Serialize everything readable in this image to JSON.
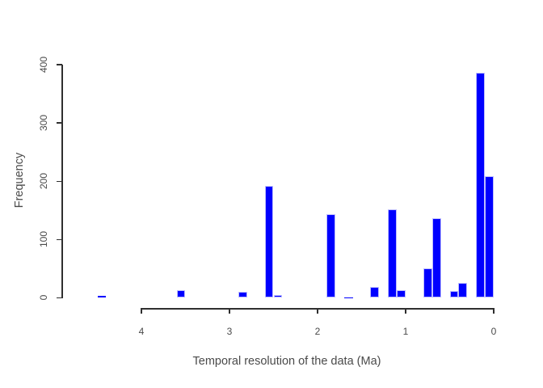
{
  "colors": {
    "background": "#ffffff",
    "bar_fill": "#0000ff",
    "bar_border": "#bdbdfd",
    "axis_line": "#2f2f2f",
    "text": "#4a4a4a"
  },
  "chart_data": {
    "type": "bar",
    "chart_kind": "histogram",
    "title": "",
    "xlabel": "Temporal resolution of the data (Ma)",
    "ylabel": "Frequency",
    "x_axis_reversed": true,
    "x_tick_values": [
      4,
      3,
      2,
      1,
      0
    ],
    "x_tick_labels": [
      "4",
      "3",
      "2",
      "1",
      "0"
    ],
    "y_tick_values": [
      0,
      100,
      200,
      300,
      400
    ],
    "y_tick_labels": [
      "0",
      "100",
      "200",
      "300",
      "400"
    ],
    "ylim": [
      0,
      400
    ],
    "bin_width": 0.1,
    "grid": false,
    "legend": null,
    "bins": [
      {
        "x_from": 4.4,
        "x_to": 4.5,
        "count": 3
      },
      {
        "x_from": 3.5,
        "x_to": 3.6,
        "count": 13
      },
      {
        "x_from": 2.8,
        "x_to": 2.9,
        "count": 10
      },
      {
        "x_from": 2.5,
        "x_to": 2.6,
        "count": 192
      },
      {
        "x_from": 2.4,
        "x_to": 2.5,
        "count": 5
      },
      {
        "x_from": 1.8,
        "x_to": 1.9,
        "count": 144
      },
      {
        "x_from": 1.6,
        "x_to": 1.7,
        "count": 1
      },
      {
        "x_from": 1.3,
        "x_to": 1.4,
        "count": 18
      },
      {
        "x_from": 1.1,
        "x_to": 1.2,
        "count": 152
      },
      {
        "x_from": 1.0,
        "x_to": 1.1,
        "count": 13
      },
      {
        "x_from": 0.7,
        "x_to": 0.8,
        "count": 50
      },
      {
        "x_from": 0.6,
        "x_to": 0.7,
        "count": 137
      },
      {
        "x_from": 0.4,
        "x_to": 0.5,
        "count": 11
      },
      {
        "x_from": 0.3,
        "x_to": 0.4,
        "count": 26
      },
      {
        "x_from": 0.1,
        "x_to": 0.2,
        "count": 386
      },
      {
        "x_from": 0.0,
        "x_to": 0.1,
        "count": 209
      }
    ]
  }
}
